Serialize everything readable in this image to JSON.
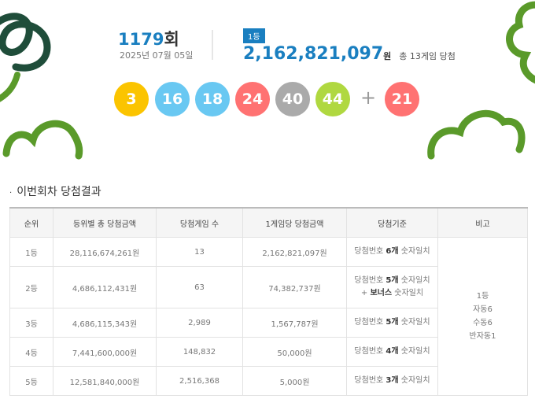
{
  "header": {
    "round": "1179",
    "round_unit": "회",
    "date": "2025년 07월 05일",
    "badge": "1등",
    "prize": "2,162,821,097",
    "prize_unit": "원",
    "winners": "총 13게임 당첨"
  },
  "balls": {
    "numbers": [
      {
        "value": "3",
        "color": "#fbc400"
      },
      {
        "value": "16",
        "color": "#69c8f2"
      },
      {
        "value": "18",
        "color": "#69c8f2"
      },
      {
        "value": "24",
        "color": "#ff7272"
      },
      {
        "value": "40",
        "color": "#aaaaaa"
      },
      {
        "value": "44",
        "color": "#b0d840"
      }
    ],
    "plus": "+",
    "bonus": {
      "value": "21",
      "color": "#ff7272"
    }
  },
  "section_title": "이번회차 당첨결과",
  "table": {
    "headers": [
      "순위",
      "등위별 총 당첨금액",
      "당첨게임 수",
      "1게임당 당첨금액",
      "당첨기준",
      "비고"
    ],
    "rows": [
      {
        "rank": "1등",
        "total": "28,116,674,261원",
        "count": "13",
        "each": "2,162,821,097원",
        "criteria": [
          [
            "당첨번호 ",
            "6개",
            " 숫자일치"
          ]
        ]
      },
      {
        "rank": "2등",
        "total": "4,686,112,431원",
        "count": "63",
        "each": "74,382,737원",
        "criteria": [
          [
            "당첨번호 ",
            "5개",
            " 숫자일치"
          ],
          [
            "+ ",
            "보너스",
            " 숫자일치"
          ]
        ]
      },
      {
        "rank": "3등",
        "total": "4,686,115,343원",
        "count": "2,989",
        "each": "1,567,787원",
        "criteria": [
          [
            "당첨번호 ",
            "5개",
            " 숫자일치"
          ]
        ]
      },
      {
        "rank": "4등",
        "total": "7,441,600,000원",
        "count": "148,832",
        "each": "50,000원",
        "criteria": [
          [
            "당첨번호 ",
            "4개",
            " 숫자일치"
          ]
        ]
      },
      {
        "rank": "5등",
        "total": "12,581,840,000원",
        "count": "2,516,368",
        "each": "5,000원",
        "criteria": [
          [
            "당첨번호 ",
            "3개",
            " 숫자일치"
          ]
        ]
      }
    ],
    "remarks": [
      "1등",
      "자동6",
      "수동6",
      "반자동1"
    ]
  }
}
